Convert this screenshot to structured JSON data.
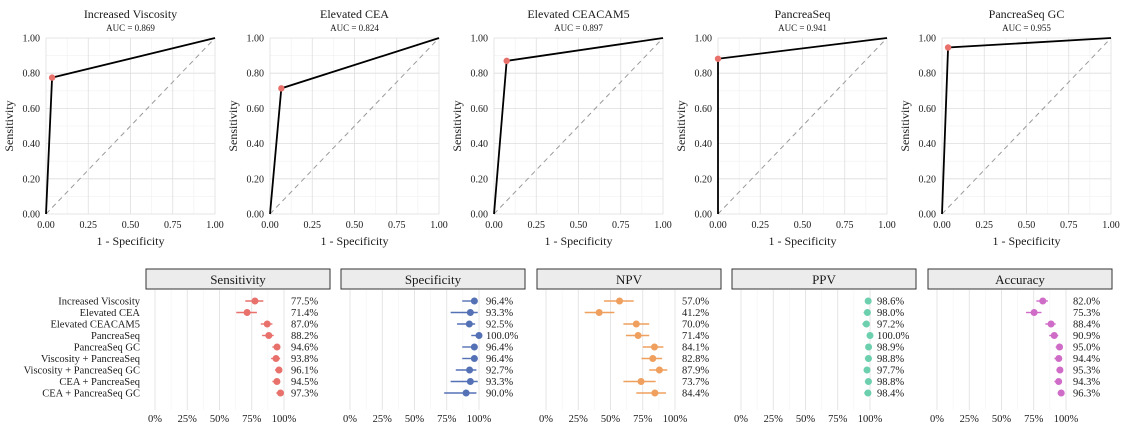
{
  "chart_data": [
    {
      "type": "line",
      "title": "Increased Viscosity",
      "subtitle": "AUC = 0.869",
      "xlabel": "1 - Specificity",
      "ylabel": "Sensitivity",
      "xlim": [
        0,
        1
      ],
      "ylim": [
        0,
        1
      ],
      "xticks": [
        "0.00",
        "0.25",
        "0.50",
        "0.75",
        "1.00"
      ],
      "yticks": [
        "0.00",
        "0.20",
        "0.40",
        "0.60",
        "0.80",
        "1.00"
      ],
      "x": [
        0,
        0.036,
        1
      ],
      "y": [
        0,
        0.775,
        1
      ],
      "cutoff_point": [
        0.036,
        0.775
      ],
      "reference_line": "diagonal dashed"
    },
    {
      "type": "line",
      "title": "Elevated CEA",
      "subtitle": "AUC = 0.824",
      "xlabel": "1 - Specificity",
      "ylabel": "Sensitivity",
      "xlim": [
        0,
        1
      ],
      "ylim": [
        0,
        1
      ],
      "xticks": [
        "0.00",
        "0.25",
        "0.50",
        "0.75",
        "1.00"
      ],
      "yticks": [
        "0.00",
        "0.20",
        "0.40",
        "0.60",
        "0.80",
        "1.00"
      ],
      "x": [
        0,
        0.067,
        1
      ],
      "y": [
        0,
        0.714,
        1
      ],
      "cutoff_point": [
        0.067,
        0.714
      ],
      "reference_line": "diagonal dashed"
    },
    {
      "type": "line",
      "title": "Elevated CEACAM5",
      "subtitle": "AUC = 0.897",
      "xlabel": "1 - Specificity",
      "ylabel": "Sensitivity",
      "xlim": [
        0,
        1
      ],
      "ylim": [
        0,
        1
      ],
      "xticks": [
        "0.00",
        "0.25",
        "0.50",
        "0.75",
        "1.00"
      ],
      "yticks": [
        "0.00",
        "0.20",
        "0.40",
        "0.60",
        "0.80",
        "1.00"
      ],
      "x": [
        0,
        0.075,
        1
      ],
      "y": [
        0,
        0.87,
        1
      ],
      "cutoff_point": [
        0.075,
        0.87
      ],
      "reference_line": "diagonal dashed"
    },
    {
      "type": "line",
      "title": "PancreaSeq",
      "subtitle": "AUC = 0.941",
      "xlabel": "1 - Specificity",
      "ylabel": "Sensitivity",
      "xlim": [
        0,
        1
      ],
      "ylim": [
        0,
        1
      ],
      "xticks": [
        "0.00",
        "0.25",
        "0.50",
        "0.75",
        "1.00"
      ],
      "yticks": [
        "0.00",
        "0.20",
        "0.40",
        "0.60",
        "0.80",
        "1.00"
      ],
      "x": [
        0,
        0,
        1
      ],
      "y": [
        0,
        0.882,
        1
      ],
      "cutoff_point": [
        0,
        0.882
      ],
      "reference_line": "diagonal dashed"
    },
    {
      "type": "line",
      "title": "PancreaSeq GC",
      "subtitle": "AUC = 0.955",
      "xlabel": "1 - Specificity",
      "ylabel": "Sensitivity",
      "xlim": [
        0,
        1
      ],
      "ylim": [
        0,
        1
      ],
      "xticks": [
        "0.00",
        "0.25",
        "0.50",
        "0.75",
        "1.00"
      ],
      "yticks": [
        "0.00",
        "0.20",
        "0.40",
        "0.60",
        "0.80",
        "1.00"
      ],
      "x": [
        0,
        0.036,
        1
      ],
      "y": [
        0,
        0.946,
        1
      ],
      "cutoff_point": [
        0.036,
        0.946
      ],
      "reference_line": "diagonal dashed"
    },
    {
      "type": "scatter",
      "title": "Sensitivity",
      "color": "#e8716c",
      "categories": [
        "Increased Viscosity",
        "Elevated CEA",
        "Elevated CEACAM5",
        "PancreaSeq",
        "PancreaSeq GC",
        "Viscosity + PancreaSeq",
        "Viscosity + PancreaSeq GC",
        "CEA + PancreaSeq",
        "CEA + PancreaSeq GC"
      ],
      "values": [
        77.5,
        71.4,
        87.0,
        88.2,
        94.6,
        93.8,
        96.1,
        94.5,
        97.3
      ],
      "ci_low": [
        70.0,
        63.0,
        82.0,
        83.0,
        91.0,
        90.0,
        93.0,
        91.0,
        94.0
      ],
      "ci_high": [
        84.0,
        79.0,
        91.0,
        92.0,
        97.0,
        97.0,
        98.5,
        97.0,
        99.0
      ],
      "labels": [
        "77.5%",
        "71.4%",
        "87.0%",
        "88.2%",
        "94.6%",
        "93.8%",
        "96.1%",
        "94.5%",
        "97.3%"
      ],
      "xticks": [
        "0%",
        "25%",
        "50%",
        "75%",
        "100%"
      ],
      "xlim": [
        0,
        100
      ]
    },
    {
      "type": "scatter",
      "title": "Specificity",
      "color": "#5571b5",
      "categories": [
        "Increased Viscosity",
        "Elevated CEA",
        "Elevated CEACAM5",
        "PancreaSeq",
        "PancreaSeq GC",
        "Viscosity + PancreaSeq",
        "Viscosity + PancreaSeq GC",
        "CEA + PancreaSeq",
        "CEA + PancreaSeq GC"
      ],
      "values": [
        96.4,
        93.3,
        92.5,
        100.0,
        96.4,
        96.4,
        92.7,
        93.3,
        90.0
      ],
      "ci_low": [
        87.0,
        78.0,
        83.0,
        94.0,
        87.0,
        87.0,
        82.0,
        78.0,
        73.0
      ],
      "ci_high": [
        99.0,
        99.0,
        97.0,
        100.0,
        99.0,
        99.0,
        98.0,
        99.0,
        98.0
      ],
      "labels": [
        "96.4%",
        "93.3%",
        "92.5%",
        "100.0%",
        "96.4%",
        "96.4%",
        "92.7%",
        "93.3%",
        "90.0%"
      ],
      "xticks": [
        "0%",
        "25%",
        "50%",
        "75%",
        "100%"
      ],
      "xlim": [
        0,
        100
      ]
    },
    {
      "type": "scatter",
      "title": "NPV",
      "color": "#f0a05e",
      "categories": [
        "Increased Viscosity",
        "Elevated CEA",
        "Elevated CEACAM5",
        "PancreaSeq",
        "PancreaSeq GC",
        "Viscosity + PancreaSeq",
        "Viscosity + PancreaSeq GC",
        "CEA + PancreaSeq",
        "CEA + PancreaSeq GC"
      ],
      "values": [
        57.0,
        41.2,
        70.0,
        71.4,
        84.1,
        82.8,
        87.9,
        73.7,
        84.4
      ],
      "ci_low": [
        45.0,
        30.0,
        60.0,
        62.0,
        75.0,
        74.0,
        80.0,
        60.0,
        70.0
      ],
      "ci_high": [
        68.0,
        53.0,
        80.0,
        80.0,
        91.0,
        90.0,
        94.0,
        85.0,
        93.0
      ],
      "labels": [
        "57.0%",
        "41.2%",
        "70.0%",
        "71.4%",
        "84.1%",
        "82.8%",
        "87.9%",
        "73.7%",
        "84.4%"
      ],
      "xticks": [
        "0%",
        "25%",
        "50%",
        "75%",
        "100%"
      ],
      "xlim": [
        0,
        100
      ]
    },
    {
      "type": "scatter",
      "title": "PPV",
      "color": "#6ccfae",
      "categories": [
        "Increased Viscosity",
        "Elevated CEA",
        "Elevated CEACAM5",
        "PancreaSeq",
        "PancreaSeq GC",
        "Viscosity + PancreaSeq",
        "Viscosity + PancreaSeq GC",
        "CEA + PancreaSeq",
        "CEA + PancreaSeq GC"
      ],
      "values": [
        98.6,
        98.0,
        97.2,
        100.0,
        98.9,
        98.8,
        97.7,
        98.8,
        98.4
      ],
      "ci_low": [
        96.0,
        95.0,
        94.0,
        98.0,
        96.5,
        96.0,
        95.0,
        96.0,
        95.5
      ],
      "ci_high": [
        99.7,
        99.6,
        99.0,
        100.0,
        99.8,
        99.7,
        99.2,
        99.7,
        99.6
      ],
      "labels": [
        "98.6%",
        "98.0%",
        "97.2%",
        "100.0%",
        "98.9%",
        "98.8%",
        "97.7%",
        "98.8%",
        "98.4%"
      ],
      "xticks": [
        "0%",
        "25%",
        "50%",
        "75%",
        "100%"
      ],
      "xlim": [
        0,
        100
      ]
    },
    {
      "type": "scatter",
      "title": "Accuracy",
      "color": "#cf6cc8",
      "categories": [
        "Increased Viscosity",
        "Elevated CEA",
        "Elevated CEACAM5",
        "PancreaSeq",
        "PancreaSeq GC",
        "Viscosity + PancreaSeq",
        "Viscosity + PancreaSeq GC",
        "CEA + PancreaSeq",
        "CEA + PancreaSeq GC"
      ],
      "values": [
        82.0,
        75.3,
        88.4,
        90.9,
        95.0,
        94.4,
        95.3,
        94.3,
        96.3
      ],
      "ci_low": [
        77.0,
        69.0,
        84.0,
        87.0,
        92.0,
        91.0,
        92.5,
        91.0,
        93.5
      ],
      "ci_high": [
        86.0,
        81.0,
        92.0,
        94.0,
        97.0,
        97.0,
        97.5,
        96.5,
        98.0
      ],
      "labels": [
        "82.0%",
        "75.3%",
        "88.4%",
        "90.9%",
        "95.0%",
        "94.4%",
        "95.3%",
        "94.3%",
        "96.3%"
      ],
      "xticks": [
        "0%",
        "25%",
        "50%",
        "75%",
        "100%"
      ],
      "xlim": [
        0,
        100
      ]
    }
  ]
}
